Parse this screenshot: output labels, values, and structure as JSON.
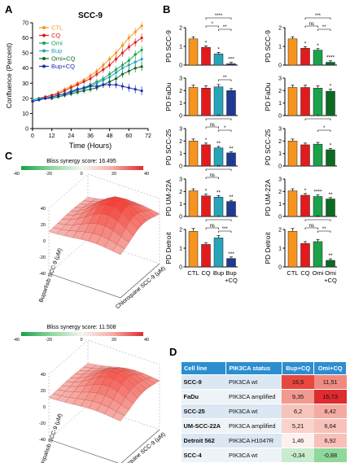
{
  "panel_labels": [
    "A",
    "B",
    "C",
    "D"
  ],
  "colors": {
    "CTL": "#f7941d",
    "CQ": "#e31a1c",
    "Omi": "#1aa14a",
    "Bup": "#27a4b7",
    "Omi+CQ": "#0b6b22",
    "Bup+CQ": "#1f2bb3",
    "teal": "#27a4b7",
    "navy": "#1f3a93",
    "green": "#1aa14a",
    "darkgreen": "#0b6b22",
    "table_header": "#2c8ecf"
  },
  "chart_data": [
    {
      "type": "line",
      "title": "SCC-9",
      "xlabel": "Time (Hours)",
      "ylabel": "Confluence (Percent)",
      "xlim": [
        0,
        72
      ],
      "ylim": [
        0,
        70
      ],
      "xticks": [
        0,
        12,
        24,
        36,
        48,
        60,
        72
      ],
      "yticks": [
        0,
        10,
        20,
        30,
        40,
        50,
        60,
        70
      ],
      "x": [
        0,
        4,
        8,
        12,
        16,
        20,
        24,
        28,
        32,
        36,
        40,
        44,
        48,
        52,
        56,
        60,
        64,
        68
      ],
      "series": [
        {
          "name": "CTL",
          "values": [
            19,
            20,
            21,
            22,
            24,
            26,
            28,
            30,
            32,
            35,
            38,
            42,
            46,
            50,
            55,
            60,
            64,
            68
          ]
        },
        {
          "name": "CQ",
          "values": [
            19,
            20,
            21,
            22,
            23,
            25,
            27,
            29,
            31,
            33,
            36,
            39,
            42,
            46,
            50,
            54,
            57,
            60
          ]
        },
        {
          "name": "Omi",
          "values": [
            19,
            20,
            20,
            21,
            22,
            23,
            25,
            26,
            27,
            29,
            31,
            33,
            36,
            39,
            42,
            45,
            49,
            52
          ]
        },
        {
          "name": "Bup",
          "values": [
            19,
            20,
            20,
            21,
            22,
            23,
            24,
            25,
            26,
            28,
            30,
            32,
            34,
            37,
            40,
            42,
            44,
            46
          ]
        },
        {
          "name": "Omi+CQ",
          "values": [
            18,
            19,
            20,
            20,
            21,
            22,
            23,
            24,
            25,
            26,
            27,
            29,
            31,
            33,
            36,
            38,
            40,
            41
          ]
        },
        {
          "name": "Bup+CQ",
          "values": [
            18,
            19,
            20,
            21,
            22,
            23,
            24,
            26,
            27,
            28,
            28,
            29,
            29,
            29,
            28,
            27,
            26,
            25
          ]
        }
      ]
    },
    {
      "type": "bar",
      "panel": "B",
      "categories_left": [
        "CTL",
        "CQ",
        "Bup",
        "Bup\n+CQ"
      ],
      "categories_right": [
        "CTL",
        "CQ",
        "Omi",
        "Omi\n+CQ"
      ],
      "rows": [
        {
          "ylabel": "PD SCC-9",
          "ylim": [
            0,
            2
          ],
          "yticks": [
            0,
            1,
            2
          ],
          "left": [
            1.4,
            0.95,
            0.6,
            0.07
          ],
          "right": [
            1.4,
            0.9,
            0.8,
            0.15
          ],
          "left_stars": [
            "",
            "*",
            "*",
            "***"
          ],
          "right_stars": [
            "",
            "*",
            "*",
            "****"
          ],
          "left_brackets": [
            {
              "from": 1,
              "to": 3,
              "label": "****"
            },
            {
              "from": 1,
              "to": 2,
              "label": "*"
            },
            {
              "from": 2,
              "to": 3,
              "label": "**"
            }
          ],
          "right_brackets": [
            {
              "from": 1,
              "to": 3,
              "label": "***"
            },
            {
              "from": 1,
              "to": 2,
              "label": "ns"
            },
            {
              "from": 2,
              "to": 3,
              "label": "**"
            }
          ]
        },
        {
          "ylabel": "PD FaDu",
          "ylim": [
            0,
            3
          ],
          "yticks": [
            0,
            1,
            2,
            3
          ],
          "left": [
            2.25,
            2.2,
            2.3,
            2.0
          ],
          "right": [
            2.25,
            2.25,
            2.2,
            1.95
          ],
          "left_stars": [
            "",
            "",
            "",
            ""
          ],
          "right_stars": [
            "",
            "",
            "",
            "*"
          ],
          "left_brackets": [
            {
              "from": 2,
              "to": 3,
              "label": "**"
            }
          ],
          "right_brackets": []
        },
        {
          "ylabel": "PD SCC-25",
          "ylim": [
            0,
            3
          ],
          "yticks": [
            0,
            1,
            2,
            3
          ],
          "left": [
            2.0,
            1.7,
            1.45,
            1.05
          ],
          "right": [
            2.0,
            1.7,
            1.75,
            1.3
          ],
          "left_stars": [
            "",
            "*",
            "**",
            "**"
          ],
          "right_stars": [
            "",
            "",
            "",
            "*"
          ],
          "left_brackets": [
            {
              "from": 1,
              "to": 3,
              "label": "**"
            },
            {
              "from": 1,
              "to": 2,
              "label": "ns"
            },
            {
              "from": 2,
              "to": 3,
              "label": "*"
            }
          ],
          "right_brackets": [
            {
              "from": 1,
              "to": 3,
              "label": "*"
            },
            {
              "from": 2,
              "to": 3,
              "label": "*"
            }
          ]
        },
        {
          "ylabel": "PD UM-22A",
          "ylim": [
            0,
            3
          ],
          "yticks": [
            0,
            1,
            2,
            3
          ],
          "left": [
            2.05,
            1.65,
            1.55,
            1.2
          ],
          "right": [
            2.05,
            1.7,
            1.6,
            1.4
          ],
          "left_stars": [
            "",
            "*",
            "**",
            "**"
          ],
          "right_stars": [
            "",
            "*",
            "****",
            "**"
          ],
          "left_brackets": [
            {
              "from": 1,
              "to": 3,
              "label": "**"
            },
            {
              "from": 1,
              "to": 2,
              "label": "ns"
            }
          ],
          "right_brackets": []
        },
        {
          "ylabel": "PD Detroit",
          "ylim": [
            0,
            2
          ],
          "yticks": [
            0,
            1,
            2
          ],
          "left": [
            1.9,
            1.2,
            1.55,
            0.45
          ],
          "right": [
            1.9,
            1.25,
            1.35,
            0.35
          ],
          "left_stars": [
            "",
            "",
            "",
            "***"
          ],
          "right_stars": [
            "",
            "",
            "",
            "**"
          ],
          "left_brackets": [
            {
              "from": 1,
              "to": 3,
              "label": "*"
            },
            {
              "from": 1,
              "to": 2,
              "label": "ns"
            },
            {
              "from": 2,
              "to": 3,
              "label": "***"
            }
          ],
          "right_brackets": [
            {
              "from": 1,
              "to": 3,
              "label": "**"
            },
            {
              "from": 1,
              "to": 2,
              "label": "ns"
            },
            {
              "from": 2,
              "to": 3,
              "label": "**"
            }
          ]
        }
      ]
    },
    {
      "type": "surface",
      "panel": "C",
      "plots": [
        {
          "title": "Bliss synergy score: 16.495",
          "colorbar_ticks": [
            "-40",
            "-20",
            "0",
            "20",
            "40"
          ],
          "xlabel": "Chloroquine SCC-9 (μM)",
          "ylabel": "Buparlisib SCC-9 (μM)",
          "zlabel": "",
          "zticks": [
            "40",
            "20",
            "0",
            "-20",
            "-40"
          ]
        },
        {
          "title": "Bliss synergy score: 11.508",
          "colorbar_ticks": [
            "-40",
            "-20",
            "0",
            "20",
            "40"
          ],
          "xlabel": "Chloroquine SCC-9 (μM)",
          "ylabel": "Omipalisib SCC-9 (μM)",
          "zlabel": "",
          "zticks": [
            "40",
            "20",
            "0",
            "-20",
            "-40"
          ]
        }
      ]
    },
    {
      "type": "table",
      "panel": "D",
      "columns": [
        "Cell line",
        "PIK3CA status",
        "Bup+CQ",
        "Omi+CQ"
      ],
      "rows": [
        [
          "SCC-9",
          "PIK3CA wt",
          "16,5",
          "11,51"
        ],
        [
          "FaDu",
          "PIK3CA amplified",
          "9,35",
          "15,73"
        ],
        [
          "SCC-25",
          "PIK3CA wt",
          "6,2",
          "8,42"
        ],
        [
          "UM-SCC-22A",
          "PIK3CA amplified",
          "5,21",
          "6,64"
        ],
        [
          "Detroit 562",
          "PIK3CA H1047R",
          "1,46",
          "6,92"
        ],
        [
          "SCC-4",
          "PIK3CA wt",
          "-0,34",
          "-0,88"
        ]
      ],
      "cell_colors": [
        [
          "#e8473f",
          "#f08a80"
        ],
        [
          "#f29a8f",
          "#e02b2f"
        ],
        [
          "#f7c4bc",
          "#f4aca2"
        ],
        [
          "#f9d2cb",
          "#f7c2ba"
        ],
        [
          "#fdf0ee",
          "#f7c0b8"
        ],
        [
          "#c9eccf",
          "#8fd79b"
        ]
      ]
    }
  ]
}
